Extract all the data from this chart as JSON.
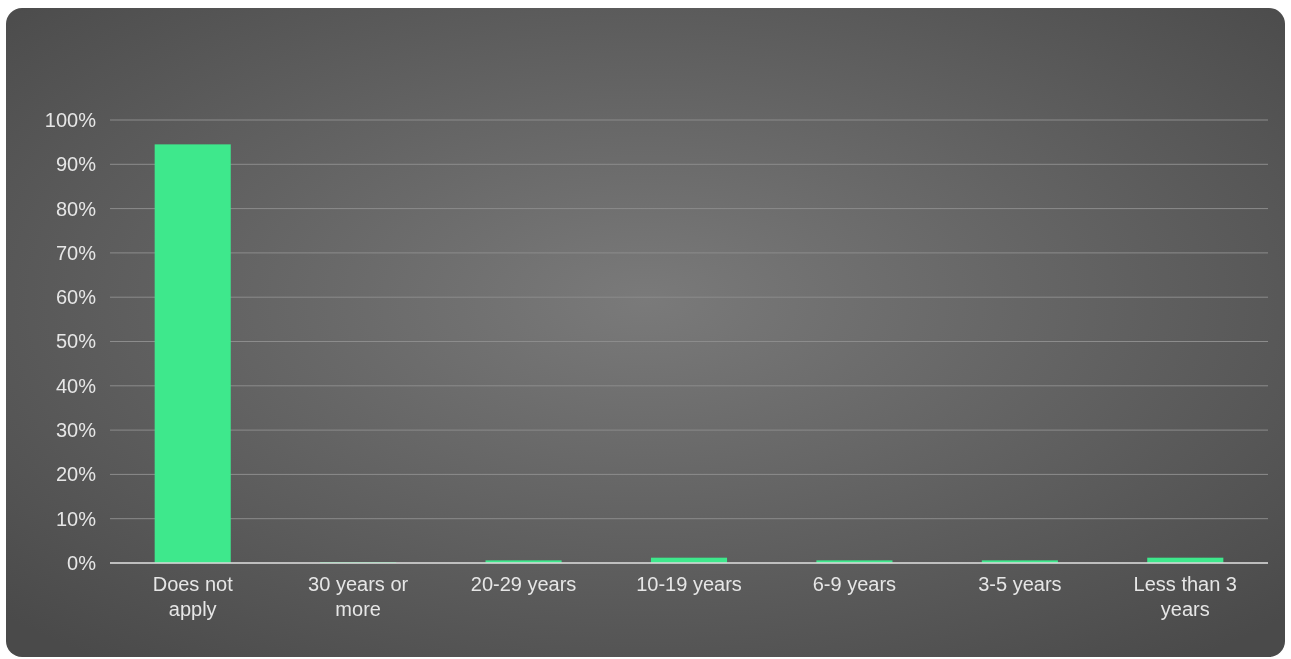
{
  "chart_data": {
    "type": "bar",
    "categories": [
      "Does not apply",
      "30 years or more",
      "20-29 years",
      "10-19 years",
      "6-9 years",
      "3-5 years",
      "Less than 3 years"
    ],
    "values": [
      94.5,
      0.2,
      0.6,
      1.2,
      0.6,
      0.6,
      1.2
    ],
    "color": "#3ee88c",
    "ylim": [
      0,
      100
    ],
    "yticks": [
      {
        "value": 0,
        "label": "0%"
      },
      {
        "value": 10,
        "label": "10%"
      },
      {
        "value": 20,
        "label": "20%"
      },
      {
        "value": 30,
        "label": "30%"
      },
      {
        "value": 40,
        "label": "40%"
      },
      {
        "value": 50,
        "label": "50%"
      },
      {
        "value": 60,
        "label": "60%"
      },
      {
        "value": 70,
        "label": "70%"
      },
      {
        "value": 80,
        "label": "80%"
      },
      {
        "value": 90,
        "label": "90%"
      },
      {
        "value": 100,
        "label": "100%"
      }
    ],
    "grid": "y"
  }
}
